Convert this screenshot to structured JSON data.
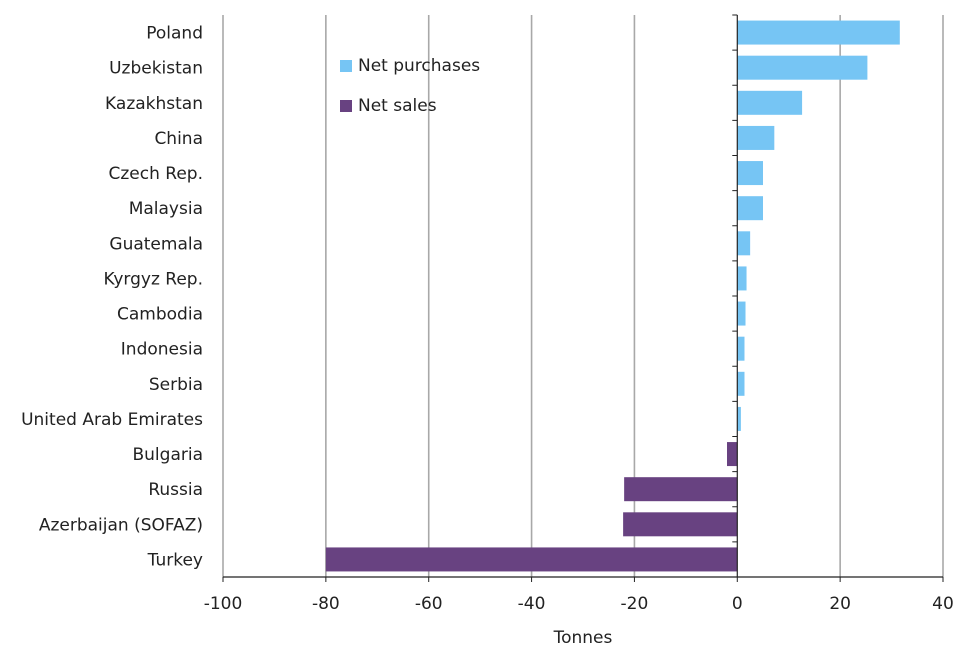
{
  "chart_data": {
    "type": "bar",
    "orientation": "horizontal",
    "categories": [
      "Poland",
      "Uzbekistan",
      "Kazakhstan",
      "China",
      "Czech Rep.",
      "Malaysia",
      "Guatemala",
      "Kyrgyz Rep.",
      "Cambodia",
      "Indonesia",
      "Serbia",
      "United Arab Emirates",
      "Bulgaria",
      "Russia",
      "Azerbaijan (SOFAZ)",
      "Turkey"
    ],
    "values": [
      31.6,
      25.3,
      12.6,
      7.2,
      5.0,
      5.0,
      2.5,
      1.8,
      1.6,
      1.4,
      1.4,
      0.7,
      -2.0,
      -22.0,
      -22.2,
      -80.0
    ],
    "series": [
      {
        "name": "Net purchases",
        "color": "#76c5f4",
        "values": [
          31.6,
          25.3,
          12.6,
          7.2,
          5.0,
          5.0,
          2.5,
          1.8,
          1.6,
          1.4,
          1.4,
          0.7,
          null,
          null,
          null,
          null
        ]
      },
      {
        "name": "Net sales",
        "color": "#684281",
        "values": [
          null,
          null,
          null,
          null,
          null,
          null,
          null,
          null,
          null,
          null,
          null,
          null,
          -2.0,
          -22.0,
          -22.2,
          -80.0
        ]
      }
    ],
    "xlabel": "Tonnes",
    "xlim": [
      -100,
      40
    ],
    "xticks": [
      -100,
      -80,
      -60,
      -40,
      -20,
      0,
      20,
      40
    ],
    "grid": "vertical",
    "legend_position": "top-center"
  }
}
